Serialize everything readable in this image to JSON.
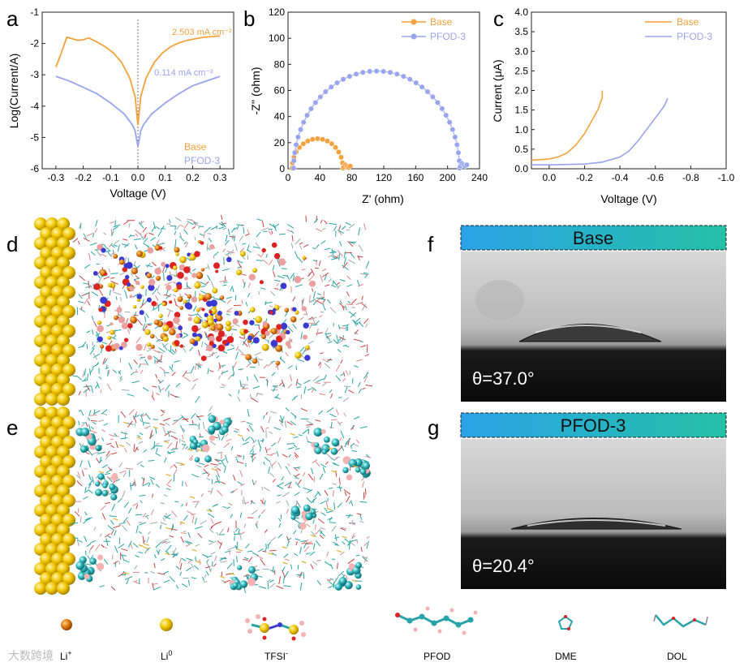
{
  "panel_labels": {
    "a": "a",
    "b": "b",
    "c": "c",
    "d": "d",
    "e": "e",
    "f": "f",
    "g": "g"
  },
  "colors": {
    "base": "#f5a13d",
    "pfod": "#98a4ee",
    "banner_left": "#2aa3e6",
    "banner_right": "#24c0a6",
    "gold": "#f2c600"
  },
  "chart_data": [
    {
      "id": "a",
      "type": "line",
      "title": "",
      "xlabel": "Voltage (V)",
      "ylabel": "Log(Current/A)",
      "xlim": [
        -0.35,
        0.35
      ],
      "ylim": [
        -6,
        -1
      ],
      "xticks": [
        -0.3,
        -0.2,
        -0.1,
        0.0,
        0.1,
        0.2,
        0.3
      ],
      "xtick_labels": [
        "-0.3",
        "-0.2",
        "-0.1",
        "0.0",
        "0.1",
        "0.2",
        "0.3"
      ],
      "yticks": [
        -6,
        -5,
        -4,
        -3,
        -2,
        -1
      ],
      "ytick_labels": [
        "-6",
        "-5",
        "-4",
        "-3",
        "-2",
        "-1"
      ],
      "annotations": [
        "2.503 mA cm⁻²",
        "0.114 mA cm⁻²"
      ],
      "series": [
        {
          "name": "Base",
          "x": [
            -0.3,
            -0.28,
            -0.26,
            -0.24,
            -0.22,
            -0.2,
            -0.18,
            -0.15,
            -0.12,
            -0.09,
            -0.06,
            -0.03,
            -0.01,
            0.0,
            0.01,
            0.03,
            0.06,
            0.09,
            0.12,
            0.15,
            0.18,
            0.21,
            0.24,
            0.27,
            0.3
          ],
          "y": [
            -2.75,
            -2.3,
            -1.8,
            -1.85,
            -1.9,
            -1.88,
            -1.82,
            -1.95,
            -2.1,
            -2.3,
            -2.6,
            -3.1,
            -3.7,
            -4.6,
            -3.7,
            -3.1,
            -2.6,
            -2.3,
            -2.1,
            -1.98,
            -1.9,
            -1.85,
            -1.8,
            -1.78,
            -1.76
          ]
        },
        {
          "name": "PFOD-3",
          "x": [
            -0.3,
            -0.25,
            -0.2,
            -0.15,
            -0.1,
            -0.05,
            -0.02,
            -0.01,
            0.0,
            0.01,
            0.02,
            0.05,
            0.1,
            0.15,
            0.2,
            0.25,
            0.3
          ],
          "y": [
            -3.05,
            -3.2,
            -3.4,
            -3.6,
            -3.9,
            -4.25,
            -4.6,
            -4.8,
            -5.3,
            -4.8,
            -4.6,
            -4.25,
            -3.9,
            -3.6,
            -3.35,
            -3.2,
            -3.05
          ]
        }
      ]
    },
    {
      "id": "b",
      "type": "scatter",
      "title": "",
      "xlabel": "Z' (ohm)",
      "ylabel": "-Z'' (ohm)",
      "xlim": [
        0,
        240
      ],
      "ylim": [
        0,
        120
      ],
      "xticks": [
        0,
        40,
        80,
        120,
        160,
        200,
        240
      ],
      "xtick_labels": [
        "0",
        "40",
        "80",
        "120",
        "160",
        "200",
        "240"
      ],
      "yticks": [
        0,
        20,
        40,
        60,
        80,
        100,
        120
      ],
      "ytick_labels": [
        "0",
        "20",
        "40",
        "60",
        "80",
        "100",
        "120"
      ],
      "series": [
        {
          "name": "Base",
          "center": 37,
          "radius": 32,
          "x0": 5,
          "x1": 69,
          "tail_x": [
            70,
            72,
            74,
            76,
            78
          ],
          "tail_y": [
            1.5,
            3,
            2,
            1,
            2
          ]
        },
        {
          "name": "PFOD-3",
          "center": 111,
          "radius": 104,
          "x0": 7,
          "x1": 215,
          "tail_x": [
            216,
            218,
            220,
            222,
            224
          ],
          "tail_y": [
            2,
            4,
            3,
            2,
            3
          ]
        }
      ]
    },
    {
      "id": "c",
      "type": "line",
      "title": "",
      "xlabel": "Voltage (V)",
      "ylabel": "Current (μA)",
      "xlim": [
        0.1,
        -1.0
      ],
      "ylim": [
        0,
        4.0
      ],
      "xticks": [
        0.0,
        -0.2,
        -0.4,
        -0.6,
        -0.8,
        -1.0
      ],
      "xtick_labels": [
        "0.0",
        "-0.2",
        "-0.4",
        "-0.6",
        "-0.8",
        "-1.0"
      ],
      "yticks": [
        0,
        0.5,
        1.0,
        1.5,
        2.0,
        2.5,
        3.0,
        3.5,
        4.0
      ],
      "ytick_labels": [
        "0.0",
        "0.5",
        "1.0",
        "1.5",
        "2.0",
        "2.5",
        "3.0",
        "3.5",
        "4.0"
      ],
      "series": [
        {
          "name": "Base",
          "x": [
            0.1,
            0.0,
            -0.05,
            -0.1,
            -0.15,
            -0.2,
            -0.25,
            -0.28,
            -0.29,
            -0.3,
            -0.3
          ],
          "y": [
            0.22,
            0.25,
            0.3,
            0.4,
            0.6,
            0.9,
            1.3,
            1.55,
            1.7,
            1.8,
            2.0
          ]
        },
        {
          "name": "PFOD-3",
          "x": [
            0.1,
            0.0,
            -0.2,
            -0.3,
            -0.4,
            -0.45,
            -0.5,
            -0.55,
            -0.6,
            -0.65,
            -0.67
          ],
          "y": [
            0.1,
            0.1,
            0.12,
            0.17,
            0.3,
            0.45,
            0.7,
            1.0,
            1.3,
            1.6,
            1.8
          ]
        }
      ]
    }
  ],
  "images": {
    "f": {
      "banner": "Base",
      "angle": "θ=37.0°"
    },
    "g": {
      "banner": "PFOD-3",
      "angle": "θ=20.4°"
    }
  },
  "legend": {
    "items": [
      {
        "label_main": "Li",
        "label_sup": "+",
        "symbol": "li-ion-icon"
      },
      {
        "label_main": "Li",
        "label_sup": "0",
        "symbol": "li-metal-icon"
      },
      {
        "label_main": "TFSI",
        "label_sup": "-",
        "symbol": "tfsi-molecule-icon"
      },
      {
        "label_main": "PFOD",
        "label_sup": "",
        "symbol": "pfod-molecule-icon"
      },
      {
        "label_main": "DME",
        "label_sup": "",
        "symbol": "dme-molecule-icon"
      },
      {
        "label_main": "DOL",
        "label_sup": "",
        "symbol": "dol-molecule-icon"
      }
    ]
  },
  "watermark": "大数跨境"
}
